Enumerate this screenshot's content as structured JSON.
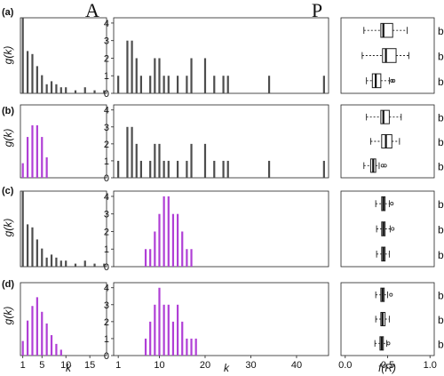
{
  "figure": {
    "col_titles": [
      "A",
      "P"
    ],
    "row_labels": [
      "(a)",
      "(b)",
      "(c)",
      "(d)"
    ],
    "ylabel": "g(k)",
    "xlabel_A": "k",
    "xlabel_P": "k",
    "xlabel_box": "f(R)",
    "box_categories": [
      "bSO",
      "bDA",
      "bRW"
    ],
    "colors": {
      "grey": "#4d4d4d",
      "purple": "#b03fd6",
      "frame": "#222222"
    }
  },
  "chart_data": [
    {
      "panel": "a-A",
      "type": "bar",
      "color": "grey",
      "xlim": [
        0.5,
        18.5
      ],
      "ylim": [
        0,
        25
      ],
      "x": [
        1,
        2,
        3,
        4,
        5,
        6,
        7,
        8,
        9,
        10,
        12,
        14,
        16,
        18
      ],
      "values": [
        25,
        14,
        13,
        9,
        6,
        3,
        4,
        3,
        2,
        2,
        1,
        2,
        1,
        1
      ],
      "xticks": [],
      "yticks": []
    },
    {
      "panel": "a-P",
      "type": "bar",
      "color": "grey",
      "xlim": [
        0,
        47
      ],
      "ylim": [
        0,
        4.3
      ],
      "x": [
        1,
        3,
        4,
        5,
        6,
        8,
        9,
        10,
        11,
        12,
        14,
        16,
        17,
        20,
        22,
        24,
        25,
        34,
        46
      ],
      "values": [
        1,
        3,
        3,
        2,
        1,
        1,
        2,
        2,
        1,
        1,
        1,
        1,
        2,
        2,
        1,
        1,
        1,
        1,
        1
      ],
      "xticks": [],
      "yticks": [
        0,
        1,
        2,
        3,
        4
      ]
    },
    {
      "panel": "b-A",
      "type": "bar",
      "color": "purple",
      "xlim": [
        0.5,
        18.5
      ],
      "ylim": [
        0,
        25
      ],
      "x": [
        1,
        2,
        3,
        4,
        5,
        6
      ],
      "values": [
        5,
        14,
        18,
        18,
        14,
        7
      ],
      "xticks": [],
      "yticks": []
    },
    {
      "panel": "b-P",
      "type": "bar",
      "color": "grey",
      "xlim": [
        0,
        47
      ],
      "ylim": [
        0,
        4.3
      ],
      "x": [
        1,
        3,
        4,
        5,
        6,
        8,
        9,
        10,
        11,
        12,
        14,
        16,
        17,
        20,
        22,
        24,
        25,
        34,
        46
      ],
      "values": [
        1,
        3,
        3,
        2,
        1,
        1,
        2,
        2,
        1,
        1,
        1,
        1,
        2,
        2,
        1,
        1,
        1,
        1,
        1
      ],
      "xticks": [],
      "yticks": [
        0,
        1,
        2,
        3,
        4
      ]
    },
    {
      "panel": "c-A",
      "type": "bar",
      "color": "grey",
      "xlim": [
        0.5,
        18.5
      ],
      "ylim": [
        0,
        25
      ],
      "x": [
        1,
        2,
        3,
        4,
        5,
        6,
        7,
        8,
        9,
        10,
        12,
        14,
        16,
        18
      ],
      "values": [
        25,
        14,
        13,
        9,
        6,
        3,
        4,
        3,
        2,
        2,
        1,
        2,
        1,
        1
      ],
      "xticks": [],
      "yticks": []
    },
    {
      "panel": "c-P",
      "type": "bar",
      "color": "purple",
      "xlim": [
        0,
        47
      ],
      "ylim": [
        0,
        4.3
      ],
      "x": [
        7,
        8,
        9,
        10,
        11,
        12,
        13,
        14,
        15,
        16,
        17
      ],
      "values": [
        1,
        1,
        2,
        3,
        4,
        4,
        3,
        3,
        2,
        1,
        1
      ],
      "xticks": [],
      "yticks": [
        0,
        1,
        2,
        3,
        4
      ]
    },
    {
      "panel": "d-A",
      "type": "bar",
      "color": "purple",
      "xlim": [
        0.5,
        18.5
      ],
      "ylim": [
        0,
        25
      ],
      "x": [
        1,
        2,
        3,
        4,
        5,
        6,
        7,
        8,
        9
      ],
      "values": [
        5,
        12,
        17,
        20,
        15,
        11,
        7,
        4,
        2
      ],
      "xticks": [
        1,
        5,
        10,
        15
      ],
      "yticks": []
    },
    {
      "panel": "d-P",
      "type": "bar",
      "color": "purple",
      "xlim": [
        0,
        47
      ],
      "ylim": [
        0,
        4.3
      ],
      "x": [
        7,
        8,
        9,
        10,
        11,
        12,
        13,
        14,
        15,
        16,
        17,
        18
      ],
      "values": [
        1,
        2,
        3,
        4,
        3,
        3,
        2,
        3,
        2,
        1,
        1,
        1
      ],
      "xticks": [
        1,
        10,
        20,
        30,
        40
      ],
      "yticks": [
        0,
        1,
        2,
        3,
        4
      ]
    },
    {
      "panel": "a-box",
      "type": "box",
      "xlim": [
        -0.05,
        1.05
      ],
      "xticks": [],
      "boxes": [
        {
          "name": "bSO",
          "min": 0.22,
          "q1": 0.42,
          "median": 0.45,
          "q3": 0.56,
          "max": 0.73,
          "outliers": []
        },
        {
          "name": "bDA",
          "min": 0.2,
          "q1": 0.44,
          "median": 0.48,
          "q3": 0.6,
          "max": 0.75,
          "outliers": []
        },
        {
          "name": "bRW",
          "min": 0.25,
          "q1": 0.32,
          "median": 0.36,
          "q3": 0.42,
          "max": 0.52,
          "outliers": [
            0.55,
            0.57
          ]
        }
      ]
    },
    {
      "panel": "b-box",
      "type": "box",
      "xlim": [
        -0.05,
        1.05
      ],
      "xticks": [],
      "boxes": [
        {
          "name": "bSO",
          "min": 0.25,
          "q1": 0.42,
          "median": 0.45,
          "q3": 0.52,
          "max": 0.66,
          "outliers": []
        },
        {
          "name": "bDA",
          "min": 0.3,
          "q1": 0.43,
          "median": 0.48,
          "q3": 0.55,
          "max": 0.64,
          "outliers": []
        },
        {
          "name": "bRW",
          "min": 0.22,
          "q1": 0.3,
          "median": 0.33,
          "q3": 0.36,
          "max": 0.4,
          "outliers": [
            0.44,
            0.47
          ]
        }
      ]
    },
    {
      "panel": "c-box",
      "type": "box",
      "xlim": [
        -0.05,
        1.05
      ],
      "xticks": [],
      "boxes": [
        {
          "name": "bSO",
          "min": 0.36,
          "q1": 0.43,
          "median": 0.45,
          "q3": 0.47,
          "max": 0.52,
          "outliers": [
            0.55
          ]
        },
        {
          "name": "bDA",
          "min": 0.37,
          "q1": 0.43,
          "median": 0.45,
          "q3": 0.47,
          "max": 0.53,
          "outliers": [
            0.56
          ]
        },
        {
          "name": "bRW",
          "min": 0.37,
          "q1": 0.43,
          "median": 0.45,
          "q3": 0.47,
          "max": 0.52,
          "outliers": []
        }
      ]
    },
    {
      "panel": "d-box",
      "type": "box",
      "xlim": [
        -0.05,
        1.05
      ],
      "xticks": [
        0.0,
        0.5,
        1.0
      ],
      "boxes": [
        {
          "name": "bSO",
          "min": 0.36,
          "q1": 0.42,
          "median": 0.44,
          "q3": 0.46,
          "max": 0.5,
          "outliers": [
            0.54
          ]
        },
        {
          "name": "bDA",
          "min": 0.36,
          "q1": 0.42,
          "median": 0.44,
          "q3": 0.47,
          "max": 0.52,
          "outliers": []
        },
        {
          "name": "bRW",
          "min": 0.35,
          "q1": 0.41,
          "median": 0.43,
          "q3": 0.45,
          "max": 0.49,
          "outliers": [
            0.51
          ]
        }
      ]
    }
  ]
}
